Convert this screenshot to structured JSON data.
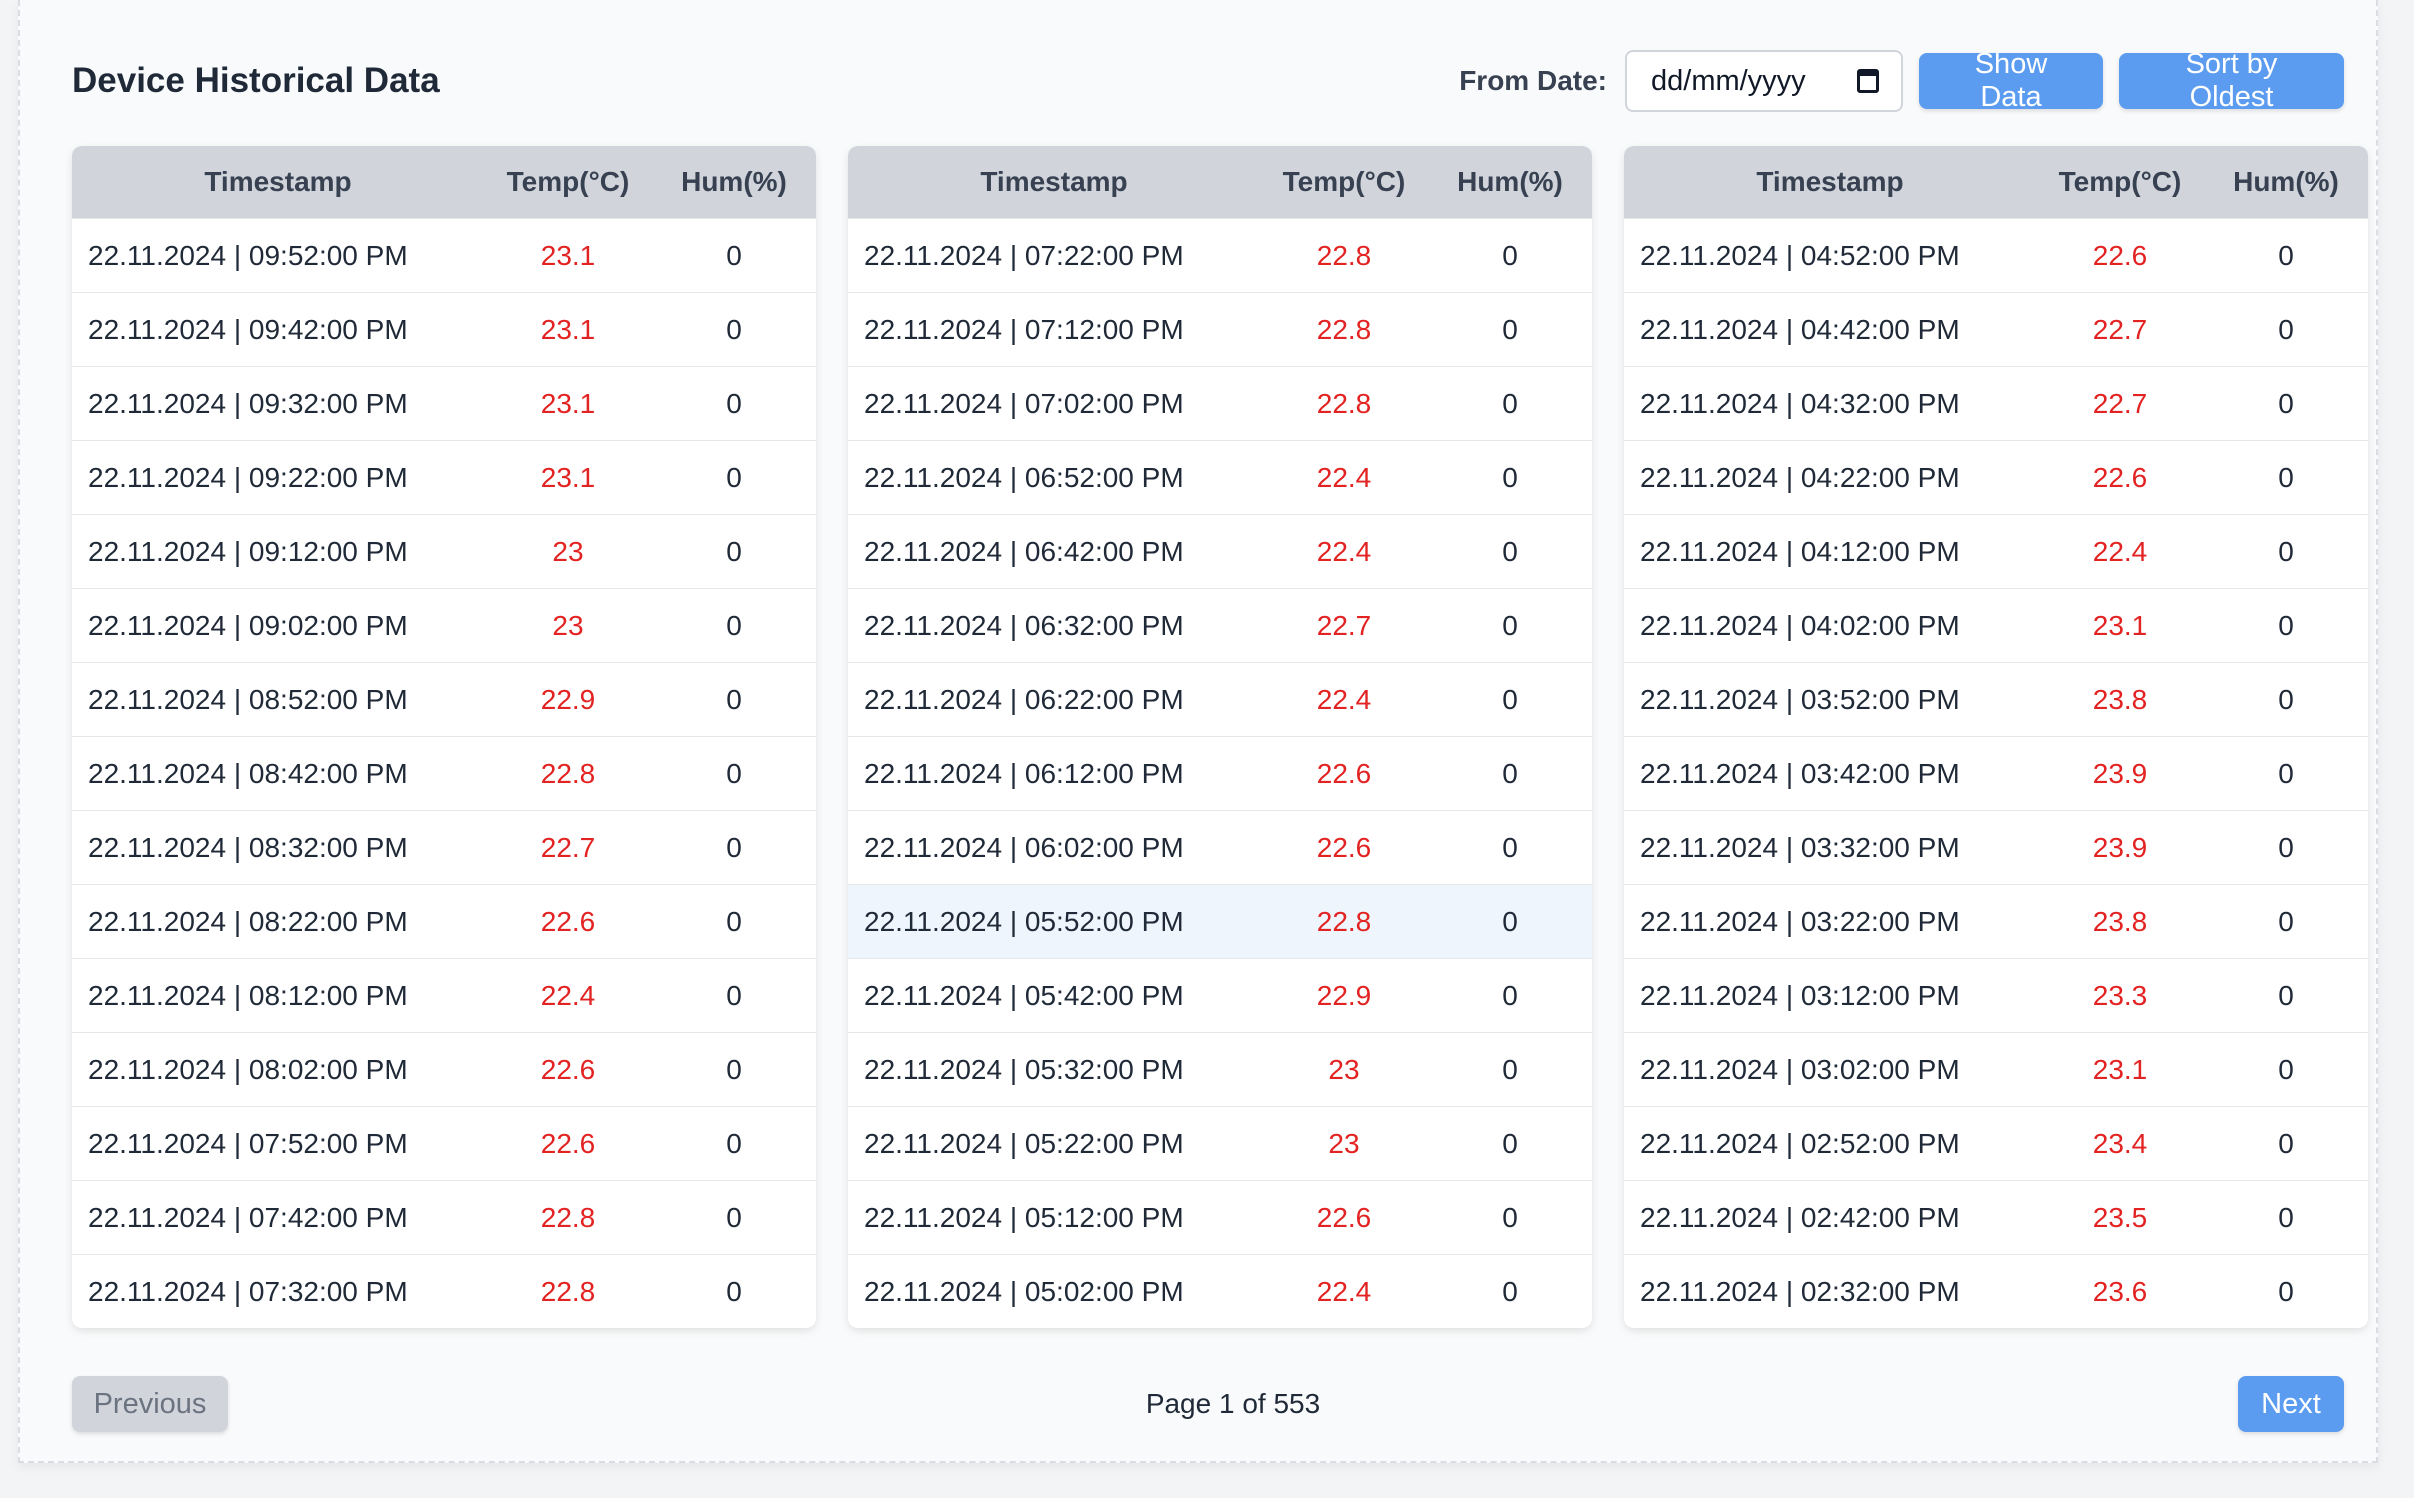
{
  "header": {
    "title": "Device Historical Data",
    "from_label": "From Date:",
    "date_placeholder": "dd/mm/yyyy",
    "show_button": "Show Data",
    "sort_button": "Sort by Oldest"
  },
  "columns": {
    "timestamp": "Timestamp",
    "temp": "Temp(°C)",
    "hum": "Hum(%)"
  },
  "colors": {
    "accent": "#5b9cf0",
    "temp_text": "#e32222",
    "highlight_row": "#eef5fd"
  },
  "tables": [
    {
      "rows": [
        {
          "ts": "22.11.2024 | 09:52:00 PM",
          "temp": "23.1",
          "hum": "0"
        },
        {
          "ts": "22.11.2024 | 09:42:00 PM",
          "temp": "23.1",
          "hum": "0"
        },
        {
          "ts": "22.11.2024 | 09:32:00 PM",
          "temp": "23.1",
          "hum": "0"
        },
        {
          "ts": "22.11.2024 | 09:22:00 PM",
          "temp": "23.1",
          "hum": "0"
        },
        {
          "ts": "22.11.2024 | 09:12:00 PM",
          "temp": "23",
          "hum": "0"
        },
        {
          "ts": "22.11.2024 | 09:02:00 PM",
          "temp": "23",
          "hum": "0"
        },
        {
          "ts": "22.11.2024 | 08:52:00 PM",
          "temp": "22.9",
          "hum": "0"
        },
        {
          "ts": "22.11.2024 | 08:42:00 PM",
          "temp": "22.8",
          "hum": "0"
        },
        {
          "ts": "22.11.2024 | 08:32:00 PM",
          "temp": "22.7",
          "hum": "0"
        },
        {
          "ts": "22.11.2024 | 08:22:00 PM",
          "temp": "22.6",
          "hum": "0"
        },
        {
          "ts": "22.11.2024 | 08:12:00 PM",
          "temp": "22.4",
          "hum": "0"
        },
        {
          "ts": "22.11.2024 | 08:02:00 PM",
          "temp": "22.6",
          "hum": "0"
        },
        {
          "ts": "22.11.2024 | 07:52:00 PM",
          "temp": "22.6",
          "hum": "0"
        },
        {
          "ts": "22.11.2024 | 07:42:00 PM",
          "temp": "22.8",
          "hum": "0"
        },
        {
          "ts": "22.11.2024 | 07:32:00 PM",
          "temp": "22.8",
          "hum": "0"
        }
      ]
    },
    {
      "rows": [
        {
          "ts": "22.11.2024 | 07:22:00 PM",
          "temp": "22.8",
          "hum": "0"
        },
        {
          "ts": "22.11.2024 | 07:12:00 PM",
          "temp": "22.8",
          "hum": "0"
        },
        {
          "ts": "22.11.2024 | 07:02:00 PM",
          "temp": "22.8",
          "hum": "0"
        },
        {
          "ts": "22.11.2024 | 06:52:00 PM",
          "temp": "22.4",
          "hum": "0"
        },
        {
          "ts": "22.11.2024 | 06:42:00 PM",
          "temp": "22.4",
          "hum": "0"
        },
        {
          "ts": "22.11.2024 | 06:32:00 PM",
          "temp": "22.7",
          "hum": "0"
        },
        {
          "ts": "22.11.2024 | 06:22:00 PM",
          "temp": "22.4",
          "hum": "0"
        },
        {
          "ts": "22.11.2024 | 06:12:00 PM",
          "temp": "22.6",
          "hum": "0"
        },
        {
          "ts": "22.11.2024 | 06:02:00 PM",
          "temp": "22.6",
          "hum": "0"
        },
        {
          "ts": "22.11.2024 | 05:52:00 PM",
          "temp": "22.8",
          "hum": "0",
          "highlight": true
        },
        {
          "ts": "22.11.2024 | 05:42:00 PM",
          "temp": "22.9",
          "hum": "0"
        },
        {
          "ts": "22.11.2024 | 05:32:00 PM",
          "temp": "23",
          "hum": "0"
        },
        {
          "ts": "22.11.2024 | 05:22:00 PM",
          "temp": "23",
          "hum": "0"
        },
        {
          "ts": "22.11.2024 | 05:12:00 PM",
          "temp": "22.6",
          "hum": "0"
        },
        {
          "ts": "22.11.2024 | 05:02:00 PM",
          "temp": "22.4",
          "hum": "0"
        }
      ]
    },
    {
      "rows": [
        {
          "ts": "22.11.2024 | 04:52:00 PM",
          "temp": "22.6",
          "hum": "0"
        },
        {
          "ts": "22.11.2024 | 04:42:00 PM",
          "temp": "22.7",
          "hum": "0"
        },
        {
          "ts": "22.11.2024 | 04:32:00 PM",
          "temp": "22.7",
          "hum": "0"
        },
        {
          "ts": "22.11.2024 | 04:22:00 PM",
          "temp": "22.6",
          "hum": "0"
        },
        {
          "ts": "22.11.2024 | 04:12:00 PM",
          "temp": "22.4",
          "hum": "0"
        },
        {
          "ts": "22.11.2024 | 04:02:00 PM",
          "temp": "23.1",
          "hum": "0"
        },
        {
          "ts": "22.11.2024 | 03:52:00 PM",
          "temp": "23.8",
          "hum": "0"
        },
        {
          "ts": "22.11.2024 | 03:42:00 PM",
          "temp": "23.9",
          "hum": "0"
        },
        {
          "ts": "22.11.2024 | 03:32:00 PM",
          "temp": "23.9",
          "hum": "0"
        },
        {
          "ts": "22.11.2024 | 03:22:00 PM",
          "temp": "23.8",
          "hum": "0"
        },
        {
          "ts": "22.11.2024 | 03:12:00 PM",
          "temp": "23.3",
          "hum": "0"
        },
        {
          "ts": "22.11.2024 | 03:02:00 PM",
          "temp": "23.1",
          "hum": "0"
        },
        {
          "ts": "22.11.2024 | 02:52:00 PM",
          "temp": "23.4",
          "hum": "0"
        },
        {
          "ts": "22.11.2024 | 02:42:00 PM",
          "temp": "23.5",
          "hum": "0"
        },
        {
          "ts": "22.11.2024 | 02:32:00 PM",
          "temp": "23.6",
          "hum": "0"
        }
      ]
    }
  ],
  "footer": {
    "previous": "Previous",
    "page_info": "Page 1 of 553",
    "next": "Next"
  }
}
